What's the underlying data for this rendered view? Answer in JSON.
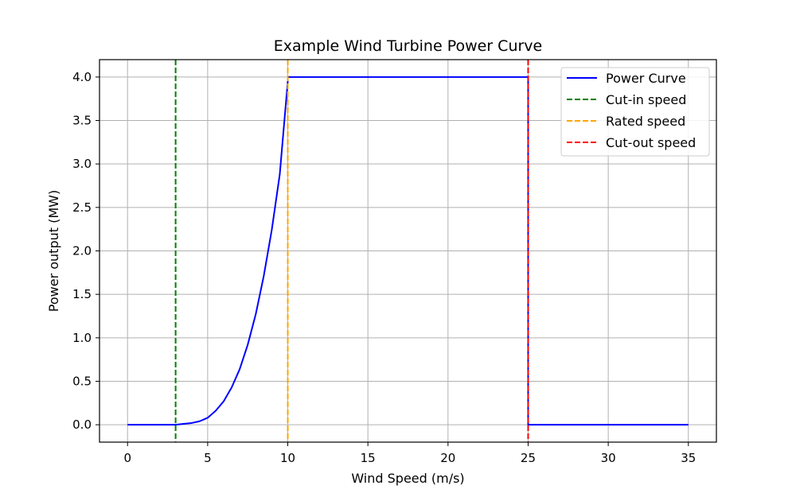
{
  "chart_data": {
    "type": "line",
    "title": "Example Wind Turbine Power Curve",
    "xlabel": "Wind Speed (m/s)",
    "ylabel": "Power output (MW)",
    "xlim": [
      -1.75,
      36.75
    ],
    "ylim": [
      -0.2,
      4.2
    ],
    "xticks": [
      0,
      5,
      10,
      15,
      20,
      25,
      30,
      35
    ],
    "yticks": [
      0.0,
      0.5,
      1.0,
      1.5,
      2.0,
      2.5,
      3.0,
      3.5,
      4.0
    ],
    "ytick_labels": [
      "0.0",
      "0.5",
      "1.0",
      "1.5",
      "2.0",
      "2.5",
      "3.0",
      "3.5",
      "4.0"
    ],
    "grid": true,
    "legend_position": "top-right",
    "series": [
      {
        "name": "Power Curve",
        "color": "#0000ff",
        "style": "solid",
        "x": [
          0,
          3,
          3.5,
          4,
          4.5,
          5,
          5.5,
          6,
          6.5,
          7,
          7.5,
          8,
          8.5,
          9,
          9.5,
          10,
          10,
          25,
          25,
          35
        ],
        "y": [
          0,
          0,
          0.01,
          0.02,
          0.04,
          0.08,
          0.16,
          0.27,
          0.43,
          0.64,
          0.92,
          1.27,
          1.71,
          2.24,
          2.88,
          3.95,
          4.0,
          4.0,
          0,
          0
        ]
      }
    ],
    "reference_lines": [
      {
        "name": "Cut-in speed",
        "x": 3,
        "color": "#008000"
      },
      {
        "name": "Rated speed",
        "x": 10,
        "color": "#ffa500"
      },
      {
        "name": "Cut-out speed",
        "x": 25,
        "color": "#ff0000"
      }
    ]
  }
}
